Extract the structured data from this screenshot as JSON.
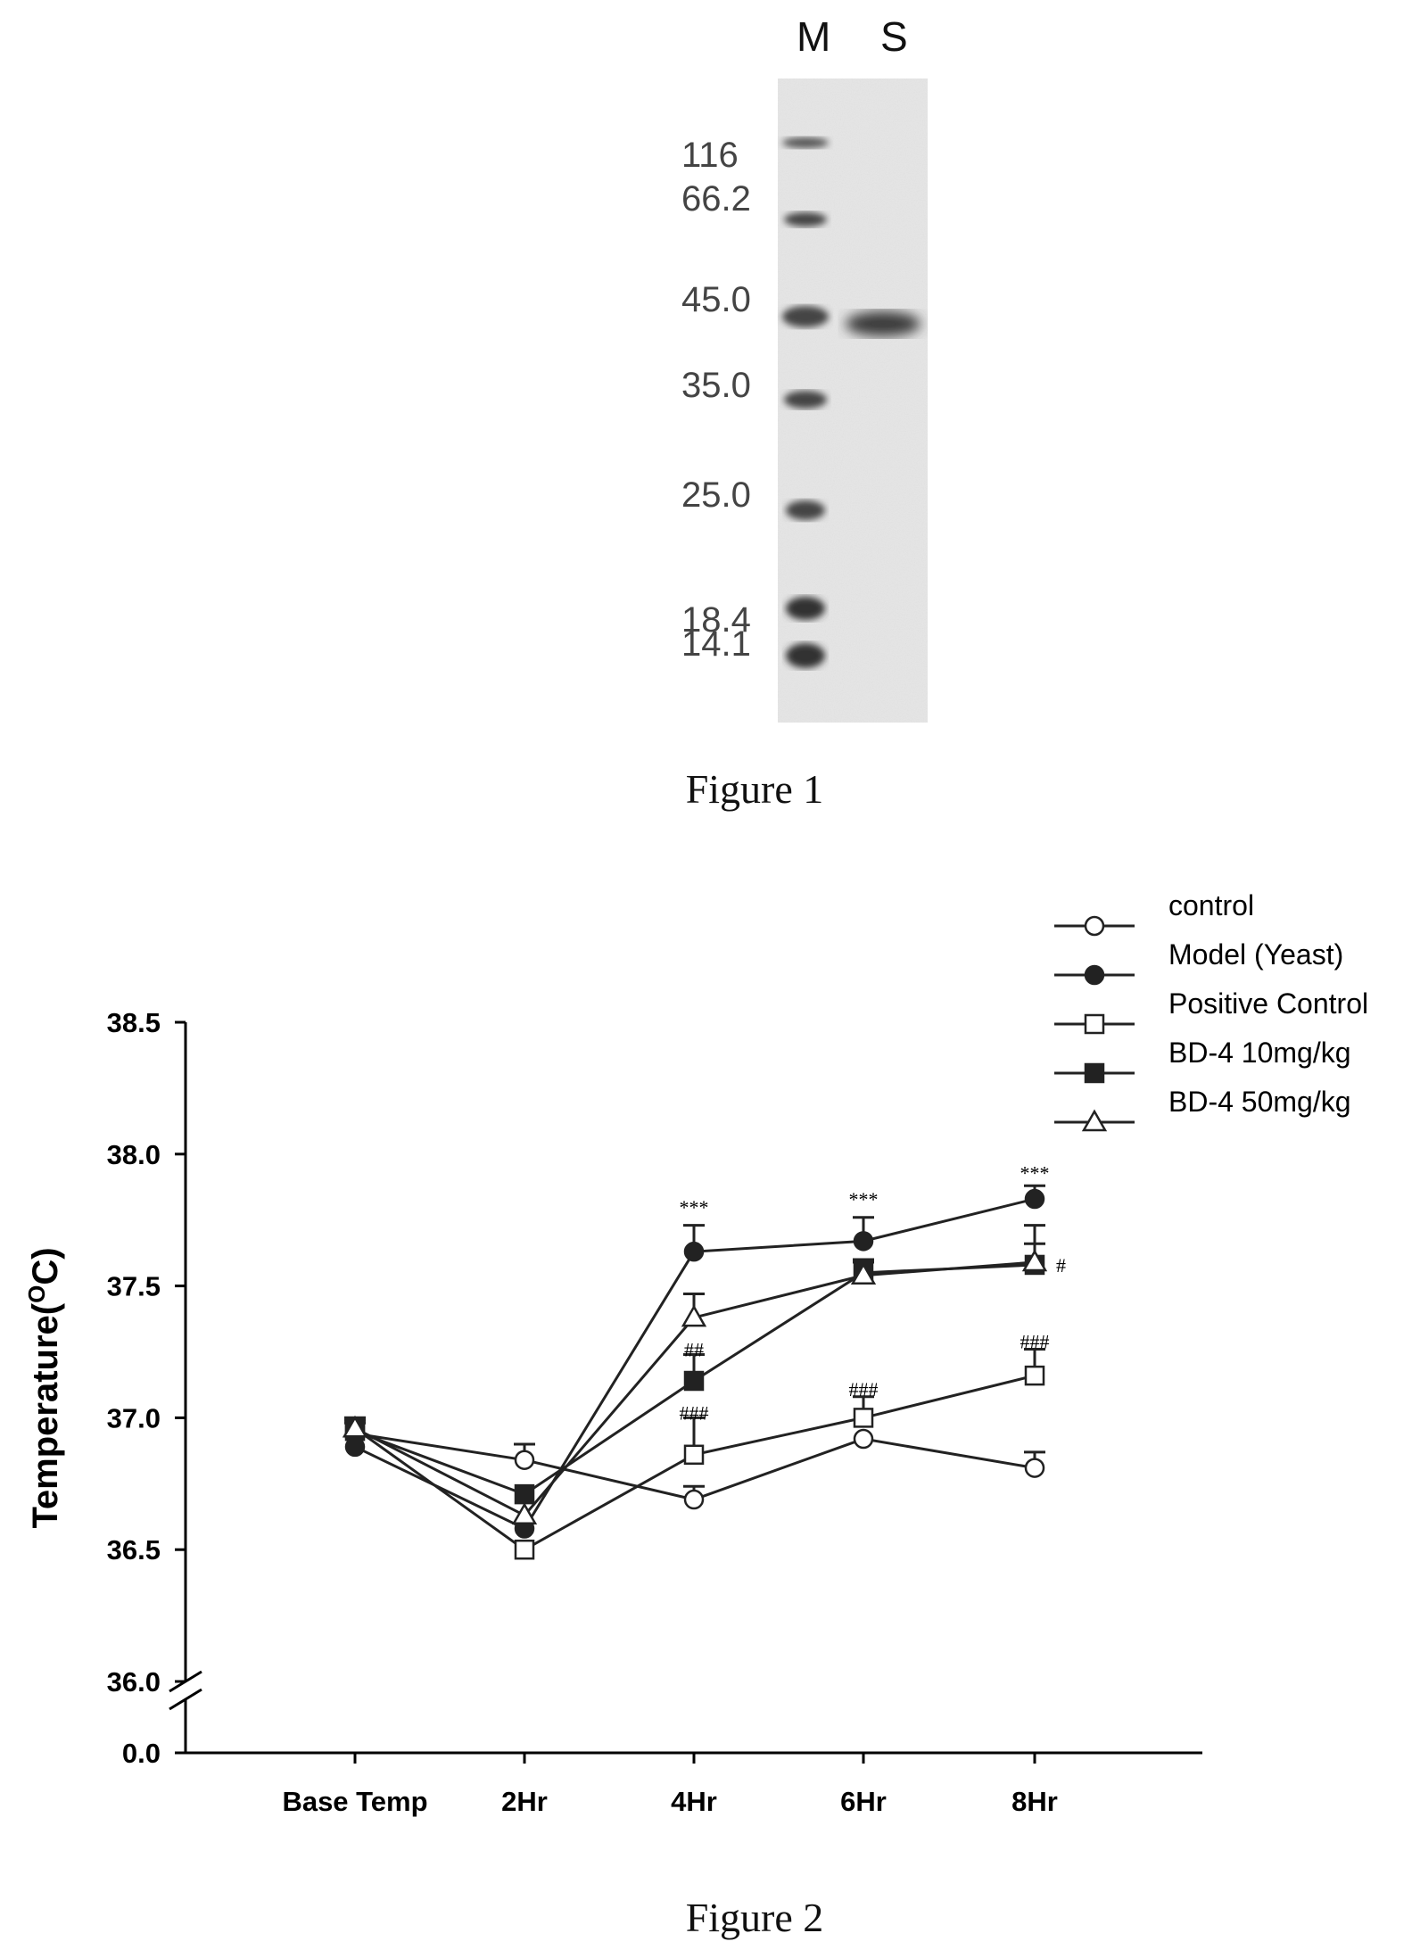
{
  "figure1": {
    "lanes": [
      "M",
      "S"
    ],
    "markers": [
      "116",
      "66.2",
      "45.0",
      "35.0",
      "25.0",
      "18.4",
      "14.1"
    ],
    "caption": "Figure 1"
  },
  "figure2": {
    "caption": "Figure 2"
  },
  "chart_data": {
    "type": "line",
    "ylabel_main": "Temperature(",
    "ylabel_sup": "O",
    "ylabel_end": "C)",
    "categories": [
      "Base Temp",
      "2Hr",
      "4Hr",
      "6Hr",
      "8Hr"
    ],
    "y_ticks": [
      "36.0",
      "36.5",
      "37.0",
      "37.5",
      "38.0",
      "38.5"
    ],
    "y_break_tick": "0.0",
    "ylim": [
      36.0,
      38.5
    ],
    "axis_break": true,
    "grid": false,
    "legend_position": "top-right",
    "series": [
      {
        "name": "control",
        "marker": "circle-open",
        "values": [
          36.94,
          36.84,
          36.69,
          36.92,
          36.81
        ],
        "err": [
          0.04,
          0.06,
          0.05,
          0.0,
          0.06
        ]
      },
      {
        "name": "Model (Yeast)",
        "marker": "circle-filled",
        "values": [
          36.89,
          36.58,
          37.63,
          37.67,
          37.83
        ],
        "err": [
          0.0,
          0.0,
          0.1,
          0.09,
          0.05
        ]
      },
      {
        "name": "Positive Control",
        "marker": "square-open",
        "values": [
          36.96,
          36.5,
          36.86,
          37.0,
          37.16
        ],
        "err": [
          0.04,
          0.0,
          0.14,
          0.08,
          0.1
        ]
      },
      {
        "name": "BD-4 10mg/kg",
        "marker": "square-filled",
        "values": [
          36.95,
          36.71,
          37.14,
          37.55,
          37.58
        ],
        "err": [
          0.04,
          0.0,
          0.1,
          0.05,
          0.08
        ]
      },
      {
        "name": "BD-4 50mg/kg",
        "marker": "triangle-open",
        "values": [
          36.96,
          36.63,
          37.38,
          37.54,
          37.59
        ],
        "err": [
          0.04,
          0.0,
          0.09,
          0.05,
          0.14
        ]
      }
    ],
    "annotations": [
      {
        "category": "4Hr",
        "value": 37.8,
        "text": "***"
      },
      {
        "category": "6Hr",
        "value": 37.83,
        "text": "***"
      },
      {
        "category": "8Hr",
        "value": 37.93,
        "text": "***"
      },
      {
        "category": "8Hr",
        "value": 37.58,
        "text": "#",
        "side": "right"
      },
      {
        "category": "4Hr",
        "value": 37.26,
        "text": "##"
      },
      {
        "category": "4Hr",
        "value": 37.02,
        "text": "###"
      },
      {
        "category": "6Hr",
        "value": 37.11,
        "text": "###"
      },
      {
        "category": "8Hr",
        "value": 37.29,
        "text": "###"
      }
    ]
  }
}
